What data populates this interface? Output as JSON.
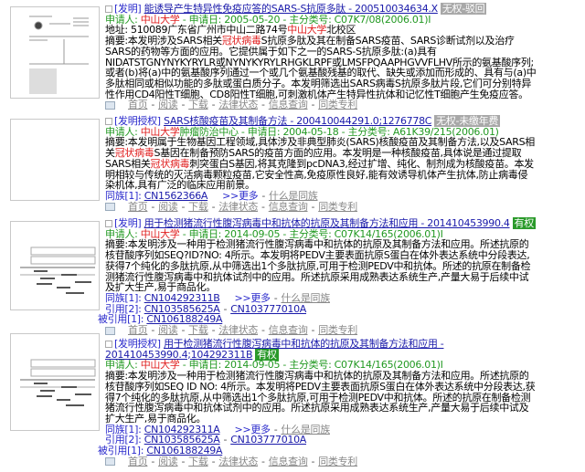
{
  "colors": {
    "title": "#1a1aaa",
    "meta": "#229922",
    "highlight": "#e02020",
    "badge_invalid": "#a8a8a8",
    "badge_valid": "#2a9a2a"
  },
  "entries": [
    {
      "type": "[发明]",
      "title": "能诱导产生特异性免疫应答的SARS-S抗原多肽 - 200510034634.X",
      "badge": "无权-驳回",
      "badge_kind": "gray",
      "meta": [
        {
          "t": "申请人: "
        },
        {
          "t": "中山大学",
          "hl": 1
        },
        {
          "t": " - 申请日: 2005-05-20 - 主分类号: C07K7/08(2006.01)I"
        }
      ],
      "address": [
        {
          "t": "地址: 510089广东省广州市中山二路74号"
        },
        {
          "t": "中山大学",
          "hl": 1
        },
        {
          "t": "北校区"
        }
      ],
      "abstract": [
        {
          "t": "摘要:本发明涉及SARS相关"
        },
        {
          "t": "冠状病毒",
          "hl": 1
        },
        {
          "t": "S抗原多肽及其在制备SARS疫苗、SARS诊断试剂以及治疗SARS的药物等方面的应用。它提供属于如下之一的SARS-S抗原多肽:(a)具有NIDATSTGNYNYKYRYLR或NYNYKYRYLRHGKLRPF或LMSFPQAAPHGVVFLHV所示的氨基酸序列;或者(b)将(a)中的氨基酸序列通过一个或几个氨基酸残基的取代、缺失或添加而形成的、具有与(a)中多肽相同或相似功能的多肽或蛋白质分子。本发明筛选出SARS病毒S抗原多肽片段,它们可分别特异性作用CD4阳性T细胞、CD8阳性T细胞,可刺激机体产生特异性抗体和记忆性T细胞产生免疫应答。"
        }
      ],
      "refs": [],
      "actions": [
        "首页",
        "阅读",
        "下载",
        "法律状态",
        "信息查询",
        "同类专利"
      ]
    },
    {
      "type": "[发明授权]",
      "title": "SARS核酸疫苗及其制备方法 - 200410044291.0;1276778C",
      "badge": "无权-未缴年费",
      "badge_kind": "gray",
      "meta": [
        {
          "t": "申请人: "
        },
        {
          "t": "中山大学",
          "hl": 1
        },
        {
          "t": "肿瘤防治中心 - 申请日: 2004-05-18 - 主分类号: A61K39/215(2006.01)"
        }
      ],
      "abstract": [
        {
          "t": "摘要:本发明属于生物基因工程领域,具体涉及非典型肺炎(SARS)核酸疫苗及其制备方法,以及SARS相关"
        },
        {
          "t": "冠状病毒",
          "hl": 1
        },
        {
          "t": "S基因在制备预防SARS的疫苗方面的应用。本发明是一种核酸疫苗,具体说是通过提取SARS相关"
        },
        {
          "t": "冠状病毒",
          "hl": 1
        },
        {
          "t": "刺突蛋白S基因,将其克隆到pcDNA3,经过扩增、纯化、制剂成为核酸疫苗。本发明相较与传统的灭活病毒颗粒疫苗,它安全性高,免疫原性良好,能有效诱导机体产生抗体,防止病毒侵染机体,具有广泛的临床应用前景。"
        }
      ],
      "refs": [
        {
          "label": "同族[1]: ",
          "links": [
            "CN1562366A"
          ],
          "more": ">>更多",
          "what": "什么是同族"
        }
      ],
      "actions": [
        "首页",
        "阅读",
        "下载",
        "法律状态",
        "信息查询",
        "同类专利"
      ]
    },
    {
      "type": "[发明]",
      "title": "用于检测猪流行性腹泻病毒中和抗体的抗原及其制备方法和应用 - 201410453990.4",
      "badge": "有权",
      "badge_kind": "green",
      "meta": [
        {
          "t": "申请人: "
        },
        {
          "t": "中山大学",
          "hl": 1
        },
        {
          "t": " - 申请日: 2014-09-05 - 主分类号: C07K14/165(2006.01)I"
        }
      ],
      "abstract": [
        {
          "t": "摘要:本发明涉及一种用于检测猪流行性腹泻病毒中和抗体的抗原及其制备方法和应用。所述抗原的核苷酸序列如SEQ?ID?NO: 4所示。本发明将PEDV主要表面抗原S蛋白在体外表达系统中分段表达,获得7个纯化的多肽抗原,从中筛选出1个多肽抗原,可用于检测PEDV中和抗体。所述的抗原在制备检测猪流行性腹泻病毒中和抗体试剂中的应用。所述抗原采用成熟表达系统生产,产量大易于后续中试及扩大生产,易于商品化。"
        }
      ],
      "refs": [
        {
          "label": "同族[1]: ",
          "links": [
            "CN104292311B"
          ],
          "more": ">>更多",
          "what": "什么是同族"
        },
        {
          "label": "引用[2]: ",
          "links": [
            "CN103585625A",
            "CN103777010A"
          ]
        },
        {
          "label": "被引用[1]: ",
          "links": [
            "CN106188249A"
          ]
        }
      ],
      "actions": [
        "首页",
        "阅读",
        "下载",
        "法律状态",
        "信息查询",
        "同类专利"
      ]
    },
    {
      "type": "[发明授权]",
      "title": "用于检测猪流行性腹泻病毒中和抗体的抗原及其制备方法和应用 - 201410453990.4;104292311B",
      "badge": "有权",
      "badge_kind": "green",
      "meta": [
        {
          "t": "申请人: "
        },
        {
          "t": "中山大学",
          "hl": 1
        },
        {
          "t": " - 申请日: 2014-09-05 - 主分类号: C07K14/165(2006.01)I"
        }
      ],
      "abstract": [
        {
          "t": "摘要:本发明涉及一种用于检测猪流行性腹泻病毒中和抗体的抗原及其制备方法和应用。所述抗原的核苷酸序列如SEQ  ID  NO: 4所示。本发明将PEDV主要表面抗原S蛋白在体外表达系统中分段表达,获得7个纯化的多肽抗原,从中筛选出1个多肽抗原,可用于检测PEDV中和抗体。所述的抗原在制备检测猪流行性腹泻病毒中和抗体试剂中的应用。所述抗原采用成熟表达系统生产,产量大易于后续中试及扩大生产,易于商品化。"
        }
      ],
      "refs": [
        {
          "label": "同族[1]: ",
          "links": [
            "CN104292311A"
          ],
          "more": ">>更多",
          "what": "什么是同族"
        },
        {
          "label": "引用[2]: ",
          "links": [
            "CN103585625A",
            "CN103777010A"
          ]
        },
        {
          "label": "被引用[1]: ",
          "links": [
            "CN106188249A"
          ]
        }
      ],
      "actions": [
        "首页",
        "阅读",
        "下载",
        "法律状态",
        "信息查询",
        "同类专利"
      ]
    }
  ]
}
